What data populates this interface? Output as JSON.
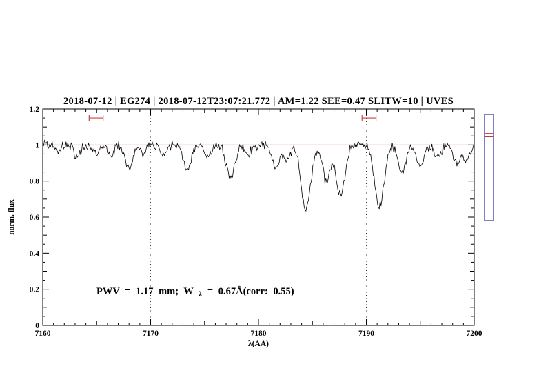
{
  "chart_data": {
    "type": "line",
    "title": "2018-07-12 | EG274 | 2018-07-12T23:07:21.772 | AM=1.22 SEE=0.47 SLITW=10 | UVES",
    "xlabel": "λ(AA)",
    "ylabel": "norm. flux",
    "xlim": [
      7160,
      7200
    ],
    "ylim": [
      0,
      1.2
    ],
    "xticks": [
      7160,
      7170,
      7180,
      7190,
      7200
    ],
    "xtick_labels": [
      "7160",
      "7170",
      "7180",
      "7190",
      "7200"
    ],
    "yticks": [
      0,
      0.2,
      0.4,
      0.6,
      0.8,
      1,
      1.2
    ],
    "ytick_labels": [
      "0",
      "0.2",
      "0.4",
      "0.6",
      "0.8",
      "1",
      "1.2"
    ],
    "grid": false,
    "dotted_vlines": [
      7170,
      7190
    ],
    "continuum_level": 1.0,
    "noise_sigma": 0.012,
    "absorption_lines": [
      {
        "center": 7161.5,
        "depth": 0.04,
        "width": 0.25
      },
      {
        "center": 7163.2,
        "depth": 0.07,
        "width": 0.3
      },
      {
        "center": 7165.0,
        "depth": 0.05,
        "width": 0.3
      },
      {
        "center": 7166.3,
        "depth": 0.06,
        "width": 0.3
      },
      {
        "center": 7168.0,
        "depth": 0.13,
        "width": 0.35
      },
      {
        "center": 7169.3,
        "depth": 0.05,
        "width": 0.3
      },
      {
        "center": 7171.2,
        "depth": 0.06,
        "width": 0.3
      },
      {
        "center": 7173.4,
        "depth": 0.14,
        "width": 0.35
      },
      {
        "center": 7175.3,
        "depth": 0.07,
        "width": 0.3
      },
      {
        "center": 7177.4,
        "depth": 0.18,
        "width": 0.4
      },
      {
        "center": 7179.0,
        "depth": 0.05,
        "width": 0.3
      },
      {
        "center": 7181.6,
        "depth": 0.13,
        "width": 0.35
      },
      {
        "center": 7182.6,
        "depth": 0.08,
        "width": 0.3
      },
      {
        "center": 7184.4,
        "depth": 0.35,
        "width": 0.45
      },
      {
        "center": 7186.3,
        "depth": 0.2,
        "width": 0.35
      },
      {
        "center": 7187.6,
        "depth": 0.28,
        "width": 0.4
      },
      {
        "center": 7191.2,
        "depth": 0.34,
        "width": 0.45
      },
      {
        "center": 7193.3,
        "depth": 0.15,
        "width": 0.35
      },
      {
        "center": 7195.0,
        "depth": 0.12,
        "width": 0.35
      },
      {
        "center": 7196.6,
        "depth": 0.07,
        "width": 0.3
      },
      {
        "center": 7198.4,
        "depth": 0.1,
        "width": 0.35
      },
      {
        "center": 7199.3,
        "depth": 0.08,
        "width": 0.3
      }
    ],
    "red_markers": [
      {
        "x1": 7164.3,
        "x2": 7165.6,
        "y": 1.15
      },
      {
        "x1": 7189.6,
        "x2": 7190.9,
        "y": 1.15
      }
    ],
    "annotation": {
      "prefix": "PWV = 1.17 mm; W",
      "sub": "λ",
      "suffix": " = 0.67Å(corr: 0.55)"
    },
    "legend": null,
    "colors": {
      "title": "#0000cc",
      "annotation": "#0000cc",
      "spectrum": "#000000",
      "continuum": "#cc5555",
      "marker": "#cc4444",
      "vline": "#333333",
      "axis": "#000000",
      "gauge_border": "#8080c0",
      "gauge_marker_top": "#cc5555",
      "gauge_marker_bottom": "#b04040"
    },
    "side_gauge": {
      "present": true,
      "marker_count": 2
    }
  }
}
